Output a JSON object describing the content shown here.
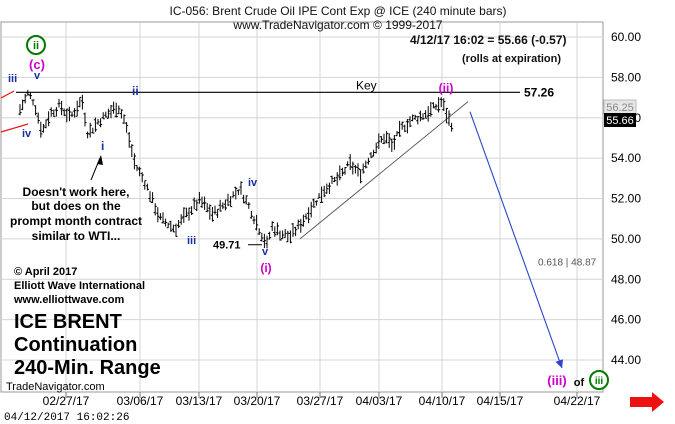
{
  "header": {
    "title": "IC-056:  Brent Crude Oil IPE Cont Exp @ ICE  (240 minute bars)",
    "source": "www.TradeNavigator.com © 1999-2017"
  },
  "quote": {
    "text": "4/12/17 16:02 = 55.66 (-0.57)",
    "note": "(rolls at expiration)"
  },
  "price_tags": {
    "prev": "56.25",
    "last": "55.66"
  },
  "key_level": {
    "label": "Key",
    "value_text": "57.26",
    "value": 57.26
  },
  "fib": {
    "text": "0.618 | 48.87",
    "value": 48.87
  },
  "low_label": {
    "text": "49.71",
    "value": 49.71
  },
  "comment": {
    "line1": "Doesn't work here,",
    "line2": "but does on the",
    "line3": "prompt month contract",
    "line4": "similar to WTI..."
  },
  "credits": {
    "copyright": "© April 2017",
    "company": "Elliott Wave International",
    "website": "www.elliottwave.com"
  },
  "big_title": {
    "line1": "ICE BRENT",
    "line2": "Continuation",
    "line3": "240-Min. Range"
  },
  "brand": "TradeNavigator.com",
  "timestamp": "04/12/2017 16:02:26",
  "wave_labels": {
    "circle_ii": "ii",
    "c": "(c)",
    "iii_left": "iii",
    "v_top": "v",
    "iv_left": "iv",
    "ii_mid": "ii",
    "i_mid": "i",
    "iii_low": "iii",
    "iv_mid": "iv",
    "v_low": "v",
    "paren_i": "(i)",
    "paren_ii": "(ii)",
    "target_iii": "(iii)",
    "of": "of",
    "circle_iii": "iii"
  },
  "colors": {
    "purple": "#cc00cc",
    "green": "#007a00",
    "navy": "#1a2fa0",
    "target_arrow": "#2b45cc",
    "red_arrow": "#ee1111",
    "bars": "#000000",
    "grid": "#d4d4d4"
  },
  "chart_data": {
    "type": "bar",
    "title": "IC-056:  Brent Crude Oil IPE Cont Exp @ ICE  (240 minute bars)",
    "x_tick_labels": [
      "02/27/17",
      "03/06/17",
      "03/13/17",
      "03/20/17",
      "03/27/17",
      "04/03/17",
      "04/10/17",
      "04/15/17",
      "04/22/17"
    ],
    "y_ticks": [
      44,
      46,
      48,
      50,
      52,
      54,
      56,
      58,
      60
    ],
    "y_tick_labels": [
      "44.00",
      "46.00",
      "48.00",
      "50.00",
      "52.00",
      "54.00",
      "56.00",
      "58.00",
      "60.00"
    ],
    "ylim": [
      42.3,
      60.6
    ],
    "grid": "on",
    "last_value": 55.66,
    "change": -0.57,
    "key_level": 57.26,
    "fib_target": 48.87,
    "low": 49.71,
    "path": [
      [
        0,
        56.4
      ],
      [
        8,
        57.2
      ],
      [
        14,
        56.8
      ],
      [
        22,
        55.3
      ],
      [
        30,
        56.2
      ],
      [
        40,
        56.6
      ],
      [
        50,
        56.0
      ],
      [
        62,
        56.9
      ],
      [
        68,
        55.2
      ],
      [
        78,
        55.8
      ],
      [
        88,
        56.2
      ],
      [
        98,
        56.6
      ],
      [
        105,
        55.8
      ],
      [
        115,
        53.7
      ],
      [
        125,
        52.8
      ],
      [
        140,
        51.0
      ],
      [
        155,
        50.5
      ],
      [
        168,
        51.3
      ],
      [
        180,
        51.9
      ],
      [
        193,
        51.2
      ],
      [
        206,
        51.8
      ],
      [
        220,
        52.5
      ],
      [
        232,
        51.3
      ],
      [
        242,
        50.2
      ],
      [
        247,
        49.71
      ],
      [
        252,
        50.6
      ],
      [
        260,
        50.3
      ],
      [
        270,
        50.1
      ],
      [
        280,
        50.7
      ],
      [
        292,
        51.6
      ],
      [
        305,
        52.5
      ],
      [
        318,
        53.0
      ],
      [
        330,
        53.7
      ],
      [
        340,
        53.2
      ],
      [
        352,
        54.3
      ],
      [
        365,
        55.1
      ],
      [
        372,
        54.6
      ],
      [
        382,
        55.5
      ],
      [
        392,
        55.9
      ],
      [
        402,
        56.1
      ],
      [
        412,
        56.4
      ],
      [
        422,
        56.8
      ],
      [
        427,
        56.1
      ],
      [
        432,
        55.66
      ]
    ],
    "channel": [
      [
        260,
        50.0
      ],
      [
        432,
        56.8
      ]
    ],
    "projection": [
      [
        432,
        56.3
      ],
      [
        545,
        43.6
      ]
    ]
  }
}
